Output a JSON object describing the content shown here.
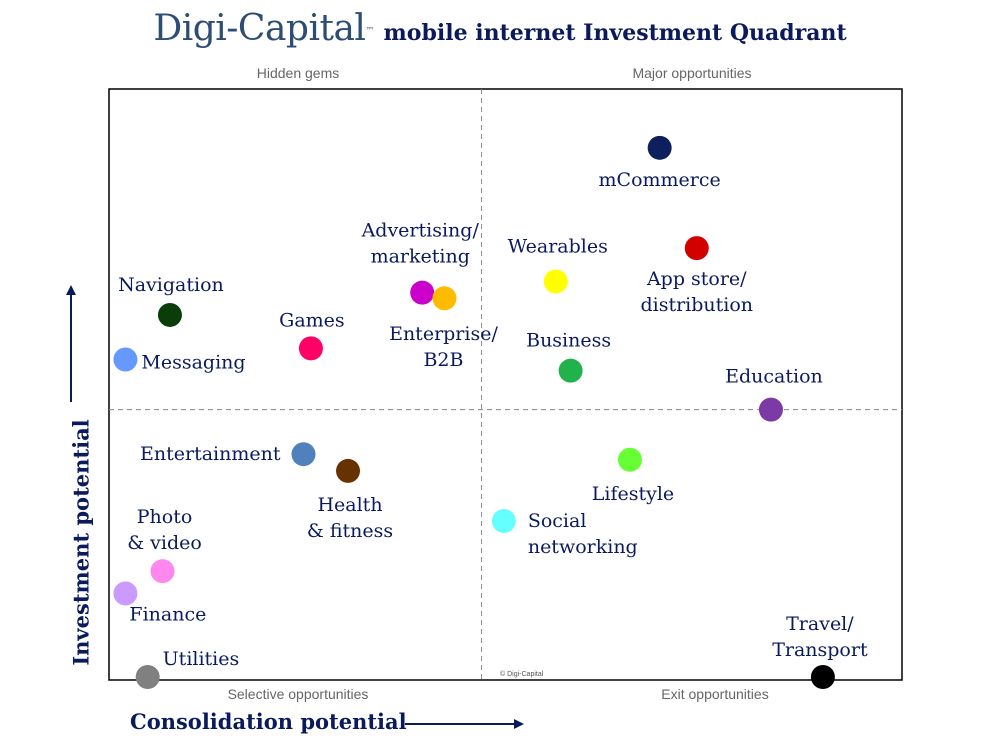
{
  "header": {
    "logo_text": "Digi-Capital",
    "tm": "TM",
    "subtitle": "mobile internet Investment Quadrant"
  },
  "quadrants": {
    "top_left": "Hidden gems",
    "top_right": "Major opportunities",
    "bottom_left": "Selective opportunities",
    "bottom_right": "Exit opportunities"
  },
  "copyright": "© Digi-Capital",
  "chart_data": {
    "type": "scatter",
    "xlabel": "Consolidation potential",
    "ylabel": "Investment potential",
    "xlim": [
      0,
      100
    ],
    "ylim": [
      0,
      100
    ],
    "x_divider": 49,
    "y_divider": 48,
    "grid": false,
    "points": [
      {
        "label": "mCommerce",
        "x": 73,
        "y": 95,
        "color": "#0d1f5c"
      },
      {
        "label": "App store/\ndistribution",
        "x": 78,
        "y": 77,
        "color": "#d30000"
      },
      {
        "label": "Wearables",
        "x": 59,
        "y": 71,
        "color": "#ffff00"
      },
      {
        "label": "Business",
        "x": 61,
        "y": 55,
        "color": "#22b24c"
      },
      {
        "label": "Education",
        "x": 88,
        "y": 48,
        "color": "#7b3aa6"
      },
      {
        "label": "Lifestyle",
        "x": 69,
        "y": 39,
        "color": "#66ff33"
      },
      {
        "label": "Social\nnetworking",
        "x": 52,
        "y": 28,
        "color": "#66ffff"
      },
      {
        "label": "Travel/\nTransport",
        "x": 95,
        "y": 0,
        "color": "#000000"
      },
      {
        "label": "Advertising/\nmarketing",
        "x": 41,
        "y": 69,
        "color": "#cc00cc"
      },
      {
        "label": "Enterprise/\nB2B",
        "x": 44,
        "y": 68,
        "color": "#ffbb00"
      },
      {
        "label": "Navigation",
        "x": 7,
        "y": 65,
        "color": "#0a3d0a"
      },
      {
        "label": "Games",
        "x": 26,
        "y": 59,
        "color": "#ff0066"
      },
      {
        "label": "Messaging",
        "x": 1,
        "y": 57,
        "color": "#6699ff"
      },
      {
        "label": "Entertainment",
        "x": 25,
        "y": 40,
        "color": "#4f81bd"
      },
      {
        "label": "Health\n& fitness",
        "x": 31,
        "y": 37,
        "color": "#663300"
      },
      {
        "label": "Photo\n& video",
        "x": 6,
        "y": 19,
        "color": "#ff88ee"
      },
      {
        "label": "Finance",
        "x": 1,
        "y": 15,
        "color": "#cc99ff"
      },
      {
        "label": "Utilities",
        "x": 4,
        "y": 0,
        "color": "#808080"
      }
    ]
  }
}
